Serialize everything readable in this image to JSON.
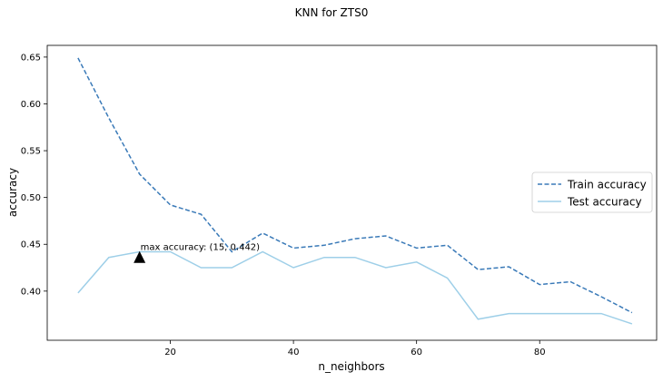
{
  "chart_data": {
    "type": "line",
    "title": "KNN for ZTS0",
    "xlabel": "n_neighbors",
    "ylabel": "accuracy",
    "xlim": [
      0,
      99
    ],
    "ylim": [
      0.3475,
      0.6625
    ],
    "xticks": [
      20,
      40,
      60,
      80
    ],
    "yticks": [
      0.4,
      0.45,
      0.5,
      0.55,
      0.6,
      0.65
    ],
    "ytick_labels": [
      "0.40",
      "0.45",
      "0.50",
      "0.55",
      "0.60",
      "0.65"
    ],
    "grid": false,
    "legend_position": "center-right",
    "x": [
      5,
      10,
      15,
      20,
      25,
      30,
      35,
      40,
      45,
      50,
      55,
      60,
      65,
      70,
      75,
      80,
      85,
      90,
      95
    ],
    "series": [
      {
        "name": "Train accuracy",
        "style": "dashed",
        "color": "#3a7ab8",
        "values": [
          0.649,
          0.585,
          0.525,
          0.492,
          0.482,
          0.442,
          0.462,
          0.446,
          0.449,
          0.456,
          0.459,
          0.446,
          0.449,
          0.423,
          0.426,
          0.407,
          0.41,
          0.394,
          0.377
        ]
      },
      {
        "name": "Test accuracy",
        "style": "solid",
        "color": "#9ecfe8",
        "values": [
          0.398,
          0.436,
          0.442,
          0.442,
          0.425,
          0.425,
          0.442,
          0.425,
          0.436,
          0.436,
          0.425,
          0.431,
          0.414,
          0.37,
          0.376,
          0.376,
          0.376,
          0.376,
          0.365
        ]
      }
    ],
    "annotation": {
      "text": "max accuracy: (15, 0.442)",
      "x": 15,
      "y": 0.442,
      "marker_y": 0.436,
      "marker": "triangle-up",
      "marker_color": "#000000"
    }
  }
}
